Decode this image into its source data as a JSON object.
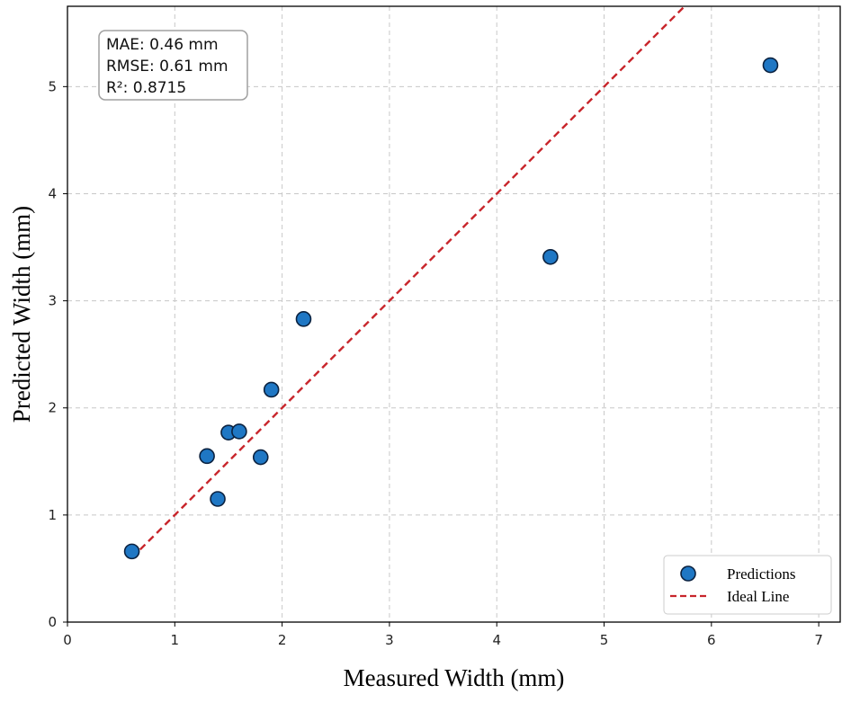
{
  "chart_data": {
    "type": "scatter",
    "xlabel": "Measured Width (mm)",
    "ylabel": "Predicted Width (mm)",
    "xlim": [
      0,
      7.2
    ],
    "ylim": [
      0,
      5.75
    ],
    "x_ticks": [
      0,
      1,
      2,
      3,
      4,
      5,
      6,
      7
    ],
    "y_ticks": [
      0,
      1,
      2,
      3,
      4,
      5
    ],
    "grid": true,
    "legend_position": "bottom-right",
    "series": [
      {
        "name": "Predictions",
        "kind": "scatter",
        "color": "#1f77c4",
        "x": [
          0.6,
          1.3,
          1.4,
          1.5,
          1.6,
          1.8,
          1.9,
          2.2,
          4.5,
          6.55
        ],
        "y": [
          0.66,
          1.55,
          1.15,
          1.77,
          1.78,
          1.54,
          2.17,
          2.83,
          3.41,
          5.2
        ]
      },
      {
        "name": "Ideal Line",
        "kind": "line",
        "style": "dashed",
        "color": "#c8252b",
        "x": [
          0.6,
          5.75
        ],
        "y": [
          0.6,
          5.75
        ]
      }
    ],
    "annotation": [
      "MAE: 0.46 mm",
      "RMSE: 0.61 mm",
      "R²: 0.8715"
    ]
  }
}
